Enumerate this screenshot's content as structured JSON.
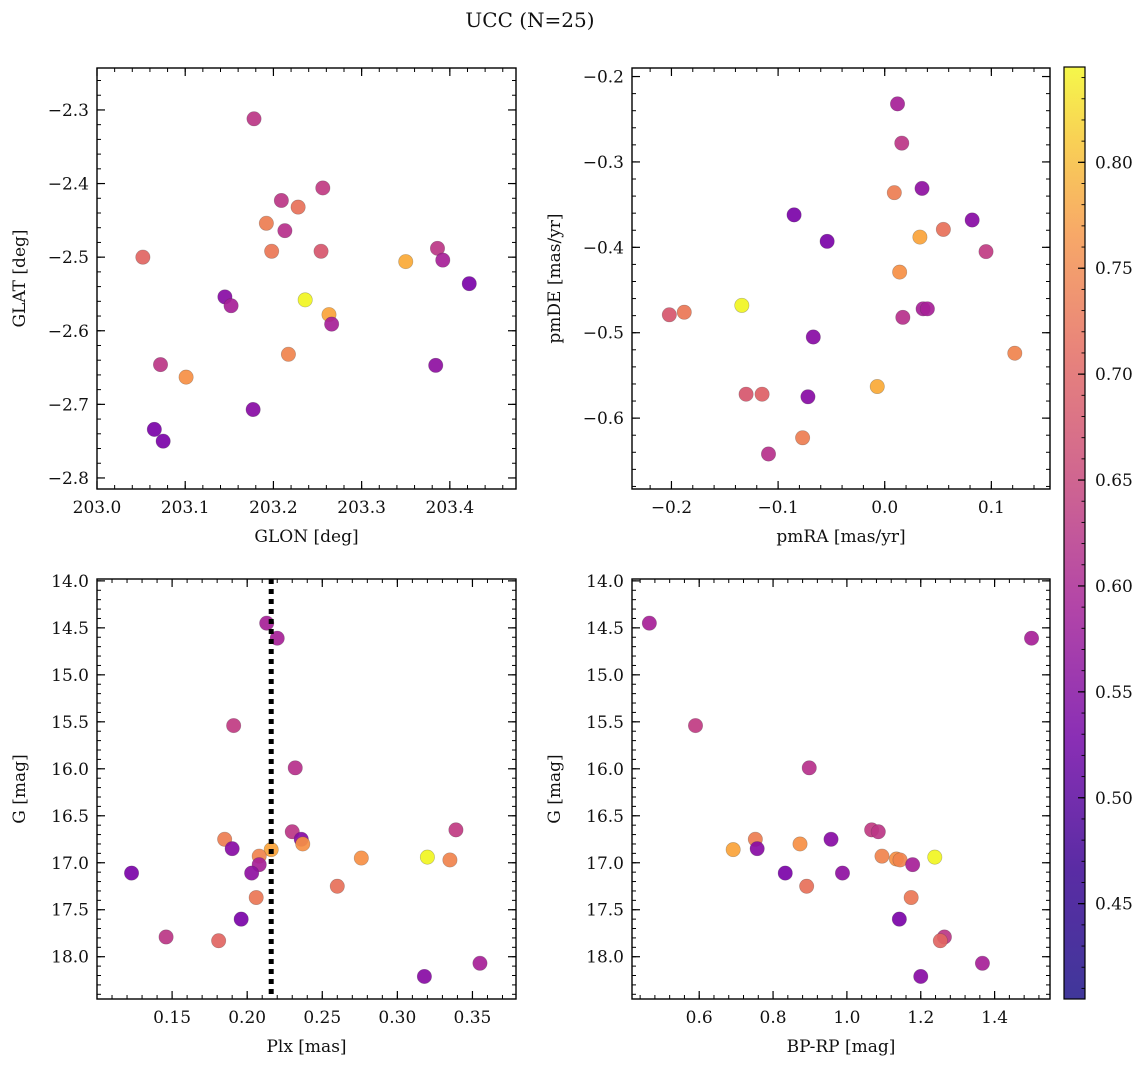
{
  "title": "UCC (N=25)",
  "chart_data": [
    {
      "type": "scatter",
      "name": "GLON vs GLAT",
      "xlabel": "GLON [deg]",
      "ylabel": "GLAT [deg]",
      "xlim": [
        203.0,
        203.475
      ],
      "ylim": [
        -2.815,
        -2.243
      ],
      "xticks": [
        203.0,
        203.1,
        203.2,
        203.3,
        203.4
      ],
      "xtick_labels": [
        "203.0",
        "203.1",
        "203.2",
        "203.3",
        "203.4"
      ],
      "yticks": [
        -2.8,
        -2.7,
        -2.6,
        -2.5,
        -2.4,
        -2.3
      ],
      "ytick_labels": [
        "−2.8",
        "−2.7",
        "−2.6",
        "−2.5",
        "−2.4",
        "−2.3"
      ],
      "inverted_y": false,
      "points": [
        {
          "x": 203.178,
          "y": -2.312,
          "c": 0.54
        },
        {
          "x": 203.256,
          "y": -2.406,
          "c": 0.55
        },
        {
          "x": 203.209,
          "y": -2.423,
          "c": 0.54
        },
        {
          "x": 203.228,
          "y": -2.432,
          "c": 0.65
        },
        {
          "x": 203.192,
          "y": -2.454,
          "c": 0.67
        },
        {
          "x": 203.213,
          "y": -2.464,
          "c": 0.53
        },
        {
          "x": 203.198,
          "y": -2.492,
          "c": 0.66
        },
        {
          "x": 203.254,
          "y": -2.492,
          "c": 0.6
        },
        {
          "x": 203.386,
          "y": -2.488,
          "c": 0.54
        },
        {
          "x": 203.052,
          "y": -2.5,
          "c": 0.63
        },
        {
          "x": 203.392,
          "y": -2.504,
          "c": 0.5
        },
        {
          "x": 203.35,
          "y": -2.506,
          "c": 0.74
        },
        {
          "x": 203.422,
          "y": -2.536,
          "c": 0.43
        },
        {
          "x": 203.145,
          "y": -2.554,
          "c": 0.45
        },
        {
          "x": 203.236,
          "y": -2.558,
          "c": 0.84
        },
        {
          "x": 203.152,
          "y": -2.566,
          "c": 0.5
        },
        {
          "x": 203.263,
          "y": -2.578,
          "c": 0.73
        },
        {
          "x": 203.266,
          "y": -2.591,
          "c": 0.5
        },
        {
          "x": 203.217,
          "y": -2.632,
          "c": 0.68
        },
        {
          "x": 203.072,
          "y": -2.646,
          "c": 0.54
        },
        {
          "x": 203.384,
          "y": -2.647,
          "c": 0.46
        },
        {
          "x": 203.101,
          "y": -2.663,
          "c": 0.7
        },
        {
          "x": 203.177,
          "y": -2.707,
          "c": 0.45
        },
        {
          "x": 203.065,
          "y": -2.734,
          "c": 0.43
        },
        {
          "x": 203.075,
          "y": -2.75,
          "c": 0.43
        }
      ]
    },
    {
      "type": "scatter",
      "name": "pmRA vs pmDE",
      "xlabel": "pmRA [mas/yr]",
      "ylabel": "pmDE [mas/yr]",
      "xlim": [
        -0.237,
        0.155
      ],
      "ylim": [
        -0.683,
        -0.19
      ],
      "xticks": [
        -0.2,
        -0.1,
        0.0,
        0.1
      ],
      "xtick_labels": [
        "−0.2",
        "−0.1",
        "0.0",
        "0.1"
      ],
      "yticks": [
        -0.6,
        -0.5,
        -0.4,
        -0.3,
        -0.2
      ],
      "ytick_labels": [
        "−0.6",
        "−0.5",
        "−0.4",
        "−0.3",
        "−0.2"
      ],
      "inverted_y": false,
      "points": [
        {
          "x": 0.012,
          "y": -0.232,
          "c": 0.5
        },
        {
          "x": 0.016,
          "y": -0.278,
          "c": 0.54
        },
        {
          "x": 0.035,
          "y": -0.331,
          "c": 0.46
        },
        {
          "x": 0.009,
          "y": -0.336,
          "c": 0.67
        },
        {
          "x": -0.085,
          "y": -0.362,
          "c": 0.43
        },
        {
          "x": 0.082,
          "y": -0.368,
          "c": 0.45
        },
        {
          "x": 0.055,
          "y": -0.379,
          "c": 0.65
        },
        {
          "x": 0.033,
          "y": -0.388,
          "c": 0.73
        },
        {
          "x": -0.054,
          "y": -0.393,
          "c": 0.43
        },
        {
          "x": 0.095,
          "y": -0.405,
          "c": 0.55
        },
        {
          "x": 0.014,
          "y": -0.429,
          "c": 0.7
        },
        {
          "x": -0.134,
          "y": -0.468,
          "c": 0.84
        },
        {
          "x": 0.036,
          "y": -0.472,
          "c": 0.5
        },
        {
          "x": 0.04,
          "y": -0.472,
          "c": 0.5
        },
        {
          "x": -0.188,
          "y": -0.476,
          "c": 0.66
        },
        {
          "x": -0.202,
          "y": -0.479,
          "c": 0.6
        },
        {
          "x": 0.017,
          "y": -0.482,
          "c": 0.53
        },
        {
          "x": -0.067,
          "y": -0.505,
          "c": 0.45
        },
        {
          "x": 0.122,
          "y": -0.524,
          "c": 0.68
        },
        {
          "x": -0.007,
          "y": -0.563,
          "c": 0.74
        },
        {
          "x": -0.13,
          "y": -0.572,
          "c": 0.6
        },
        {
          "x": -0.115,
          "y": -0.572,
          "c": 0.62
        },
        {
          "x": -0.072,
          "y": -0.575,
          "c": 0.45
        },
        {
          "x": -0.077,
          "y": -0.623,
          "c": 0.67
        },
        {
          "x": -0.109,
          "y": -0.642,
          "c": 0.53
        }
      ]
    },
    {
      "type": "scatter",
      "name": "Plx vs G",
      "xlabel": "Plx [mas]",
      "ylabel": "G [mag]",
      "xlim": [
        0.1,
        0.379
      ],
      "ylim": [
        18.45,
        13.98
      ],
      "xticks": [
        0.15,
        0.2,
        0.25,
        0.3,
        0.35
      ],
      "xtick_labels": [
        "0.15",
        "0.20",
        "0.25",
        "0.30",
        "0.35"
      ],
      "yticks": [
        14.0,
        14.5,
        15.0,
        15.5,
        16.0,
        16.5,
        17.0,
        17.5,
        18.0
      ],
      "ytick_labels": [
        "14.0",
        "14.5",
        "15.0",
        "15.5",
        "16.0",
        "16.5",
        "17.0",
        "17.5",
        "18.0"
      ],
      "inverted_y": true,
      "vline": {
        "x": 0.216,
        "style": "dotted"
      },
      "points": [
        {
          "x": 0.213,
          "y": 14.45,
          "c": 0.5
        },
        {
          "x": 0.22,
          "y": 14.61,
          "c": 0.5
        },
        {
          "x": 0.191,
          "y": 15.54,
          "c": 0.55
        },
        {
          "x": 0.232,
          "y": 15.99,
          "c": 0.53
        },
        {
          "x": 0.339,
          "y": 16.65,
          "c": 0.55
        },
        {
          "x": 0.23,
          "y": 16.67,
          "c": 0.54
        },
        {
          "x": 0.185,
          "y": 16.75,
          "c": 0.67
        },
        {
          "x": 0.236,
          "y": 16.75,
          "c": 0.45
        },
        {
          "x": 0.237,
          "y": 16.8,
          "c": 0.7
        },
        {
          "x": 0.19,
          "y": 16.85,
          "c": 0.45
        },
        {
          "x": 0.216,
          "y": 16.86,
          "c": 0.73
        },
        {
          "x": 0.208,
          "y": 16.93,
          "c": 0.68
        },
        {
          "x": 0.32,
          "y": 16.94,
          "c": 0.84
        },
        {
          "x": 0.276,
          "y": 16.95,
          "c": 0.7
        },
        {
          "x": 0.335,
          "y": 16.97,
          "c": 0.68
        },
        {
          "x": 0.208,
          "y": 17.02,
          "c": 0.5
        },
        {
          "x": 0.123,
          "y": 17.11,
          "c": 0.43
        },
        {
          "x": 0.203,
          "y": 17.11,
          "c": 0.46
        },
        {
          "x": 0.26,
          "y": 17.25,
          "c": 0.65
        },
        {
          "x": 0.206,
          "y": 17.37,
          "c": 0.66
        },
        {
          "x": 0.196,
          "y": 17.6,
          "c": 0.43
        },
        {
          "x": 0.146,
          "y": 17.79,
          "c": 0.54
        },
        {
          "x": 0.181,
          "y": 17.83,
          "c": 0.63
        },
        {
          "x": 0.355,
          "y": 18.07,
          "c": 0.5
        },
        {
          "x": 0.318,
          "y": 18.21,
          "c": 0.45
        }
      ]
    },
    {
      "type": "scatter",
      "name": "BP-RP vs G",
      "xlabel": "BP-RP [mag]",
      "ylabel": "G [mag]",
      "xlim": [
        0.418,
        1.55
      ],
      "ylim": [
        18.45,
        13.98
      ],
      "xticks": [
        0.6,
        0.8,
        1.0,
        1.2,
        1.4
      ],
      "xtick_labels": [
        "0.6",
        "0.8",
        "1.0",
        "1.2",
        "1.4"
      ],
      "yticks": [
        14.0,
        14.5,
        15.0,
        15.5,
        16.0,
        16.5,
        17.0,
        17.5,
        18.0
      ],
      "ytick_labels": [
        "14.0",
        "14.5",
        "15.0",
        "15.5",
        "16.0",
        "16.5",
        "17.0",
        "17.5",
        "18.0"
      ],
      "inverted_y": true,
      "points": [
        {
          "x": 0.465,
          "y": 14.45,
          "c": 0.5
        },
        {
          "x": 1.5,
          "y": 14.61,
          "c": 0.5
        },
        {
          "x": 0.59,
          "y": 15.54,
          "c": 0.55
        },
        {
          "x": 0.898,
          "y": 15.99,
          "c": 0.53
        },
        {
          "x": 1.067,
          "y": 16.65,
          "c": 0.55
        },
        {
          "x": 1.085,
          "y": 16.67,
          "c": 0.54
        },
        {
          "x": 0.752,
          "y": 16.75,
          "c": 0.67
        },
        {
          "x": 0.957,
          "y": 16.75,
          "c": 0.45
        },
        {
          "x": 0.873,
          "y": 16.8,
          "c": 0.7
        },
        {
          "x": 0.757,
          "y": 16.85,
          "c": 0.45
        },
        {
          "x": 0.692,
          "y": 16.86,
          "c": 0.73
        },
        {
          "x": 1.095,
          "y": 16.93,
          "c": 0.68
        },
        {
          "x": 1.238,
          "y": 16.94,
          "c": 0.84
        },
        {
          "x": 1.134,
          "y": 16.96,
          "c": 0.7
        },
        {
          "x": 1.144,
          "y": 16.97,
          "c": 0.68
        },
        {
          "x": 1.178,
          "y": 17.02,
          "c": 0.5
        },
        {
          "x": 0.833,
          "y": 17.11,
          "c": 0.43
        },
        {
          "x": 0.988,
          "y": 17.11,
          "c": 0.46
        },
        {
          "x": 0.891,
          "y": 17.25,
          "c": 0.65
        },
        {
          "x": 1.174,
          "y": 17.37,
          "c": 0.66
        },
        {
          "x": 1.142,
          "y": 17.6,
          "c": 0.43
        },
        {
          "x": 1.264,
          "y": 17.79,
          "c": 0.54
        },
        {
          "x": 1.253,
          "y": 17.83,
          "c": 0.63
        },
        {
          "x": 1.367,
          "y": 18.07,
          "c": 0.5
        },
        {
          "x": 1.2,
          "y": 18.21,
          "c": 0.45
        }
      ]
    }
  ],
  "colorbar": {
    "cmap": "plasma",
    "range": [
      0.405,
      0.845
    ],
    "ticks": [
      0.45,
      0.5,
      0.55,
      0.6,
      0.65,
      0.7,
      0.75,
      0.8
    ],
    "tick_labels": [
      "0.45",
      "0.50",
      "0.55",
      "0.60",
      "0.65",
      "0.70",
      "0.75",
      "0.80"
    ]
  }
}
